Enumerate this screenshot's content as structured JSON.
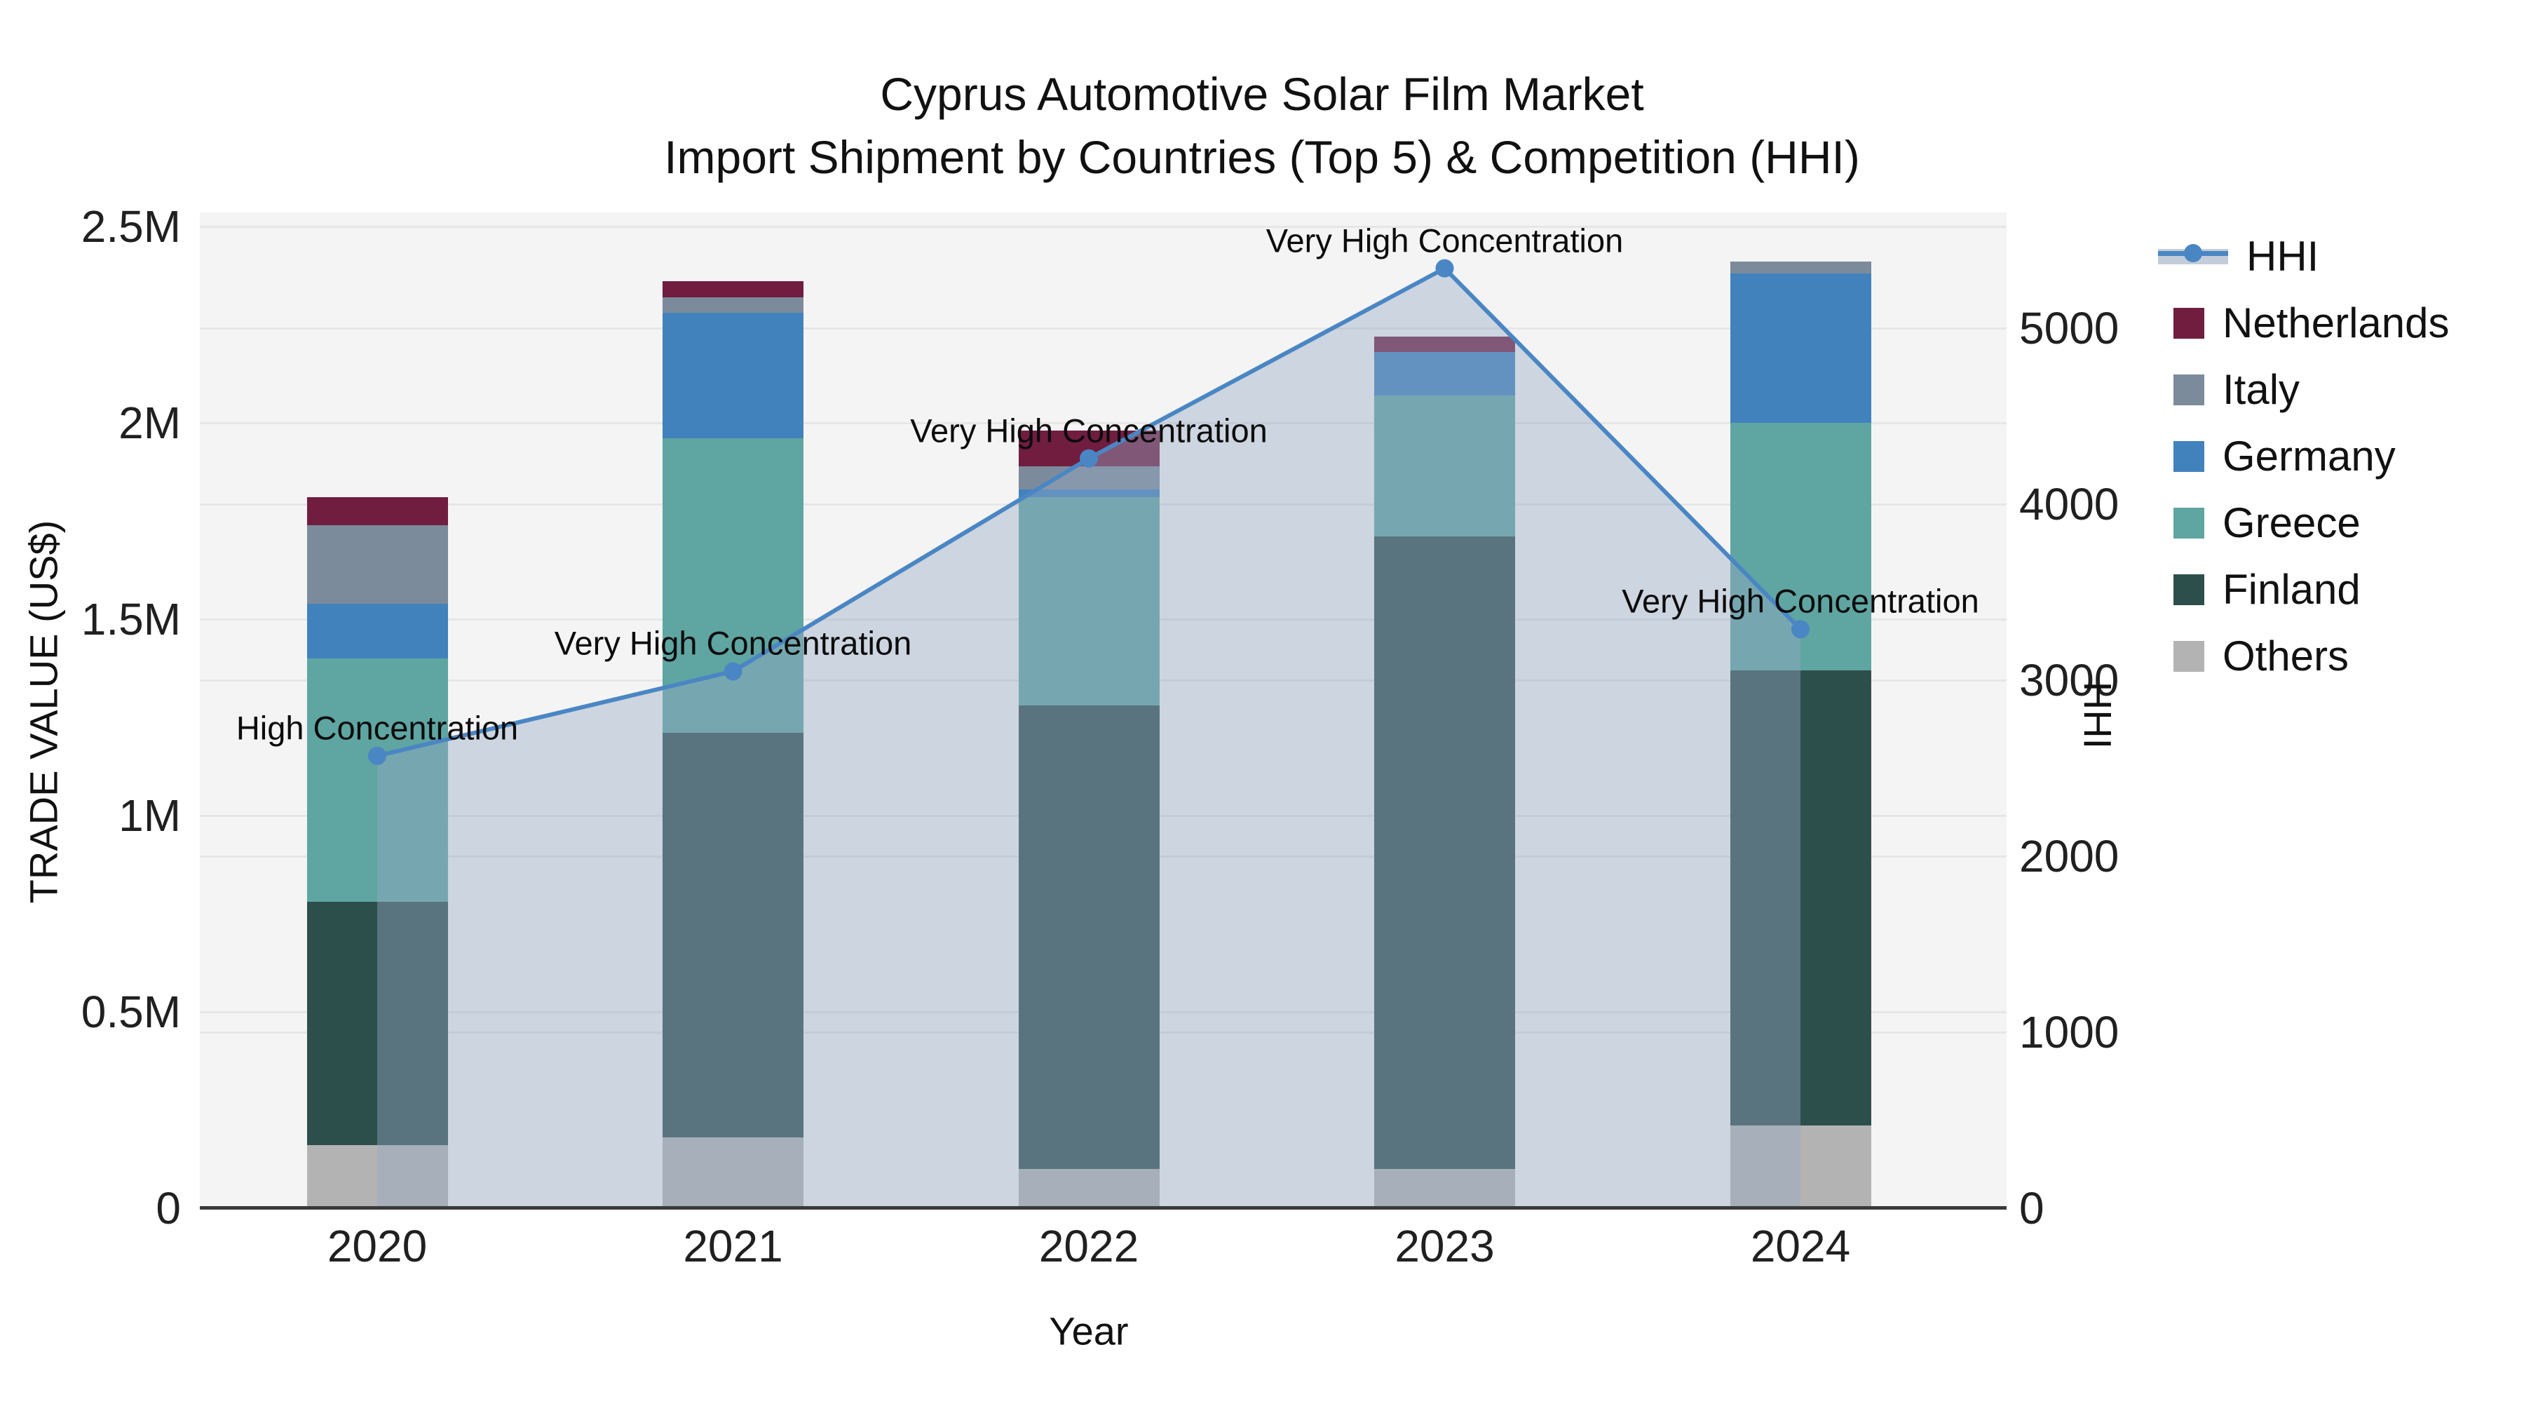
{
  "title": {
    "line1": "Cyprus Automotive Solar Film Market",
    "line2": "Import Shipment by Countries (Top 5) & Competition (HHI)"
  },
  "axes": {
    "x": {
      "label": "Year"
    },
    "y_left": {
      "label": "TRADE VALUE (US$)",
      "ticks": [
        {
          "label": "0",
          "value": 0
        },
        {
          "label": "0.5M",
          "value": 0.5
        },
        {
          "label": "1M",
          "value": 1
        },
        {
          "label": "1.5M",
          "value": 1.5
        },
        {
          "label": "2M",
          "value": 2
        },
        {
          "label": "2.5M",
          "value": 2.5
        }
      ]
    },
    "y_right": {
      "label": "HHI",
      "ticks": [
        {
          "label": "0",
          "value": 0
        },
        {
          "label": "1000",
          "value": 1000
        },
        {
          "label": "2000",
          "value": 2000
        },
        {
          "label": "3000",
          "value": 3000
        },
        {
          "label": "4000",
          "value": 4000
        },
        {
          "label": "5000",
          "value": 5000
        }
      ]
    }
  },
  "legend": [
    {
      "name": "HHI",
      "type": "line",
      "color": "#4a86c4",
      "area_color": "#c3cdd9"
    },
    {
      "name": "Netherlands",
      "type": "bar",
      "color": "#701d40"
    },
    {
      "name": "Italy",
      "type": "bar",
      "color": "#7c8b9b"
    },
    {
      "name": "Germany",
      "type": "bar",
      "color": "#4182bd"
    },
    {
      "name": "Greece",
      "type": "bar",
      "color": "#5fa5a2"
    },
    {
      "name": "Finland",
      "type": "bar",
      "color": "#2d4f4c"
    },
    {
      "name": "Others",
      "type": "bar",
      "color": "#b3b3b3"
    }
  ],
  "chart_data": {
    "type": "combo: stacked-bar + line (dual axis)",
    "categories": [
      "2020",
      "2021",
      "2022",
      "2023",
      "2024"
    ],
    "unit_left": "US$ millions (left axis TRADE VALUE)",
    "series": [
      {
        "name": "Others",
        "color": "#b3b3b3",
        "values": [
          0.16,
          0.18,
          0.1,
          0.1,
          0.21
        ]
      },
      {
        "name": "Finland",
        "color": "#2d4f4c",
        "values": [
          0.62,
          1.03,
          1.18,
          1.61,
          1.16
        ]
      },
      {
        "name": "Greece",
        "color": "#5fa5a2",
        "values": [
          0.62,
          0.75,
          0.53,
          0.36,
          0.63
        ]
      },
      {
        "name": "Germany",
        "color": "#4182bd",
        "values": [
          0.14,
          0.32,
          0.02,
          0.11,
          0.38
        ]
      },
      {
        "name": "Italy",
        "color": "#7c8b9b",
        "values": [
          0.2,
          0.04,
          0.06,
          0.0,
          0.03
        ]
      },
      {
        "name": "Netherlands",
        "color": "#701d40",
        "values": [
          0.07,
          0.04,
          0.09,
          0.04,
          0.0
        ]
      }
    ],
    "bar_totals": [
      1.81,
      2.36,
      1.98,
      2.22,
      2.41
    ],
    "line": {
      "name": "HHI",
      "color": "#4a86c4",
      "area_fill": "rgba(150,170,195,0.42)",
      "values": [
        2570,
        3050,
        4260,
        5340,
        3290
      ]
    },
    "annotations": [
      "High Concentration",
      "Very High Concentration",
      "Very High Concentration",
      "Very High Concentration",
      "Very High Concentration"
    ],
    "title": "Cyprus Automotive Solar Film Market",
    "subtitle": "Import Shipment by Countries (Top 5) & Competition (HHI)",
    "xlabel": "Year",
    "ylabel_left": "TRADE VALUE (US$)",
    "ylabel_right": "HHI",
    "ylim_left": [
      0,
      2.52
    ],
    "ylim_right": [
      0,
      5650
    ],
    "grid": true,
    "legend_position": "right",
    "plot_background": "#f4f4f4"
  }
}
